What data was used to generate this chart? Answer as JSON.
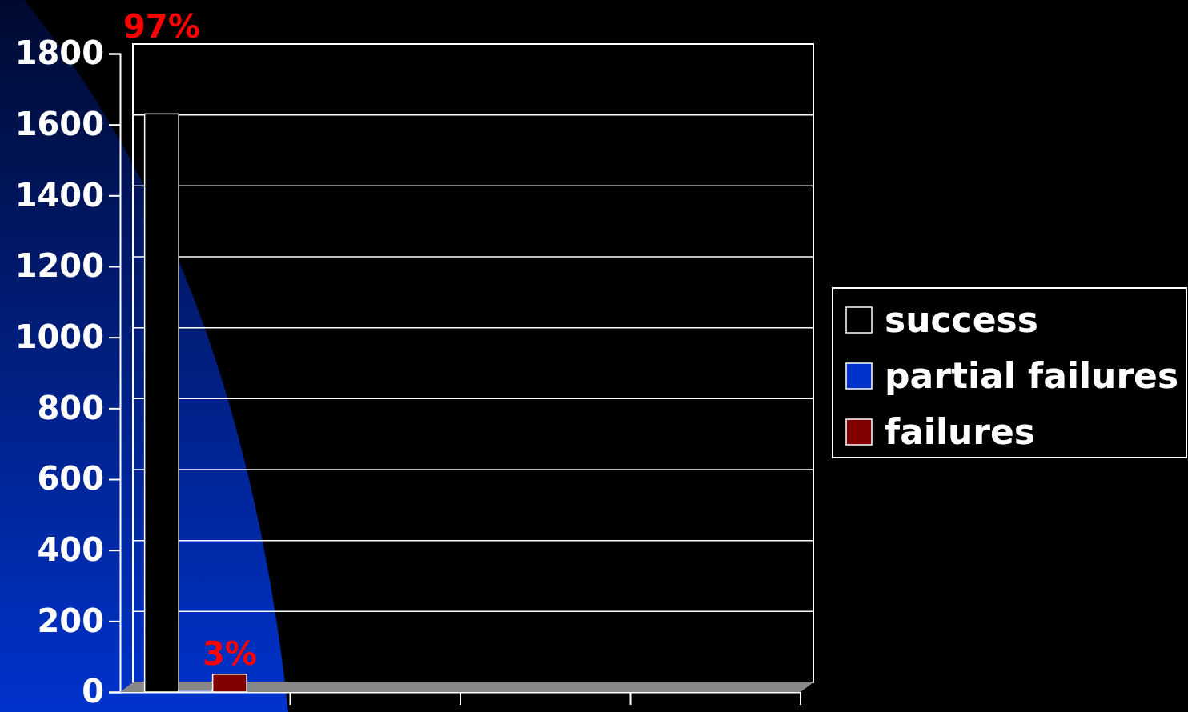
{
  "chart_data": {
    "type": "bar",
    "categories": [
      null,
      null,
      null,
      null
    ],
    "series": [
      {
        "name": "success",
        "color": "#000000",
        "values": [
          1630,
          null,
          null,
          null
        ]
      },
      {
        "name": "partial failures",
        "color": "#0033cc",
        "values": [
          5,
          null,
          null,
          null
        ]
      },
      {
        "name": "failures",
        "color": "#800000",
        "values": [
          50,
          null,
          null,
          null
        ]
      }
    ],
    "annotations": [
      {
        "text": "97%",
        "y": 1630
      },
      {
        "text": "3%",
        "y": 50
      }
    ],
    "ylim": [
      0,
      1800
    ],
    "yticks": [
      0,
      200,
      400,
      600,
      800,
      1000,
      1200,
      1400,
      1600,
      1800
    ],
    "grid": "y",
    "legend": "right"
  }
}
